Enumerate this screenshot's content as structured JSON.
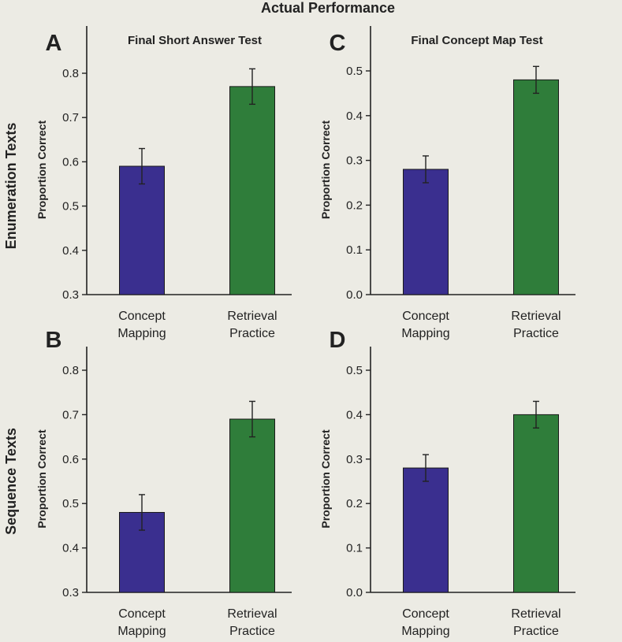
{
  "figure": {
    "title": "Actual Performance",
    "row_labels": [
      "Enumeration Texts",
      "Sequence Texts"
    ],
    "column_titles": [
      "Final Short Answer Test",
      "Final Concept Map Test"
    ]
  },
  "colors": {
    "concept_mapping": "#3a2f8f",
    "retrieval_practice": "#2f7d3a",
    "axis": "#222222",
    "background": "#ecebe4"
  },
  "chart_data": [
    {
      "panel": "A",
      "type": "bar",
      "title": "Final Short Answer Test",
      "ylabel": "Proportion Correct",
      "categories": [
        "Concept Mapping",
        "Retrieval Practice"
      ],
      "category_lines": [
        [
          "Concept",
          "Mapping"
        ],
        [
          "Retrieval",
          "Practice"
        ]
      ],
      "values": [
        0.59,
        0.77
      ],
      "error": [
        0.04,
        0.04
      ],
      "ylim": [
        0.3,
        0.85
      ],
      "yticks": [
        "0.3",
        "0.4",
        "0.5",
        "0.6",
        "0.7",
        "0.8"
      ]
    },
    {
      "panel": "B",
      "type": "bar",
      "title": "",
      "ylabel": "Proportion Correct",
      "categories": [
        "Concept Mapping",
        "Retrieval Practice"
      ],
      "category_lines": [
        [
          "Concept",
          "Mapping"
        ],
        [
          "Retrieval",
          "Practice"
        ]
      ],
      "values": [
        0.48,
        0.69
      ],
      "error": [
        0.04,
        0.04
      ],
      "ylim": [
        0.3,
        0.85
      ],
      "yticks": [
        "0.3",
        "0.4",
        "0.5",
        "0.6",
        "0.7",
        "0.8"
      ]
    },
    {
      "panel": "C",
      "type": "bar",
      "title": "Final Concept Map Test",
      "ylabel": "Proportion Correct",
      "categories": [
        "Concept Mapping",
        "Retrieval Practice"
      ],
      "category_lines": [
        [
          "Concept",
          "Mapping"
        ],
        [
          "Retrieval",
          "Practice"
        ]
      ],
      "values": [
        0.28,
        0.48
      ],
      "error": [
        0.03,
        0.03
      ],
      "ylim": [
        0.0,
        0.55
      ],
      "yticks": [
        "0.0",
        "0.1",
        "0.2",
        "0.3",
        "0.4",
        "0.5"
      ]
    },
    {
      "panel": "D",
      "type": "bar",
      "title": "",
      "ylabel": "Proportion Correct",
      "categories": [
        "Concept Mapping",
        "Retrieval Practice"
      ],
      "category_lines": [
        [
          "Concept",
          "Mapping"
        ],
        [
          "Retrieval",
          "Practice"
        ]
      ],
      "values": [
        0.28,
        0.4
      ],
      "error": [
        0.03,
        0.03
      ],
      "ylim": [
        0.0,
        0.55
      ],
      "yticks": [
        "0.0",
        "0.1",
        "0.2",
        "0.3",
        "0.4",
        "0.5"
      ]
    }
  ]
}
